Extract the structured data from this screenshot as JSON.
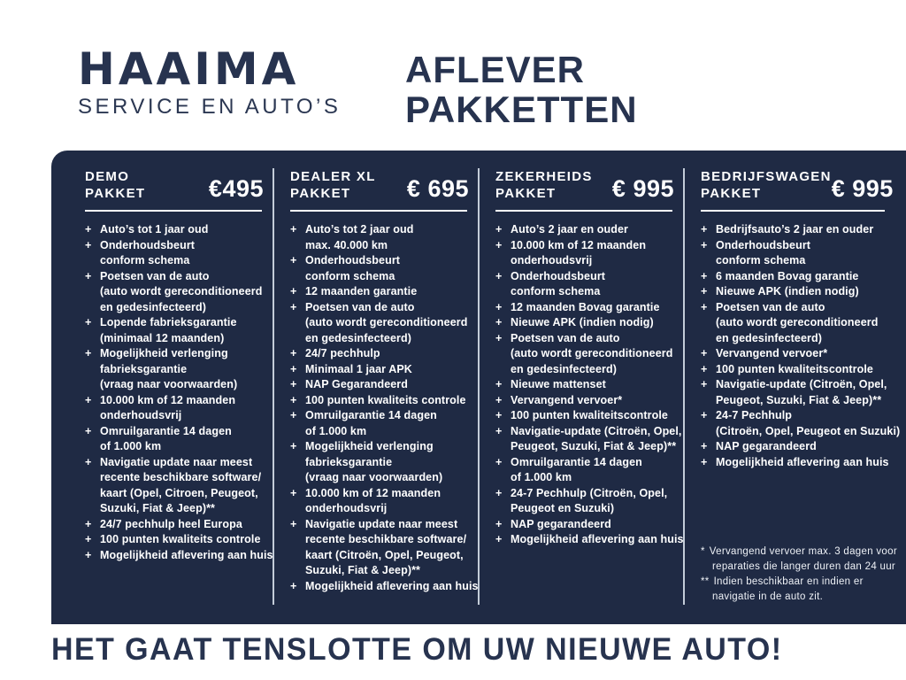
{
  "colors": {
    "panel_navy": "#1f2a44",
    "heading_navy": "#27334f",
    "divider_gray": "#c3ccd8",
    "text_white": "#ffffff"
  },
  "bullet": "+",
  "header": {
    "logo_title": "HAAIMA",
    "logo_subtitle": "SERVICE EN AUTO’S",
    "page_title_line1": "AFLEVER",
    "page_title_line2": "PAKKETTEN"
  },
  "packages": [
    {
      "name_line1": "DEMO",
      "name_line2": "PAKKET",
      "price": "€495",
      "items": [
        [
          "Auto’s tot 1 jaar oud"
        ],
        [
          "Onderhoudsbeurt",
          "conform schema"
        ],
        [
          "Poetsen van de auto",
          "(auto wordt gereconditioneerd",
          "en gedesinfecteerd)"
        ],
        [
          "Lopende fabrieksgarantie",
          "(minimaal 12 maanden)"
        ],
        [
          "Mogelijkheid verlenging",
          "fabrieksgarantie",
          "(vraag naar voorwaarden)"
        ],
        [
          "10.000 km of 12 maanden",
          "onderhoudsvrij"
        ],
        [
          "Omruilgarantie 14 dagen",
          "of 1.000 km"
        ],
        [
          "Navigatie update naar meest",
          "recente beschikbare software/",
          "kaart (Opel, Citroen, Peugeot,",
          "Suzuki, Fiat & Jeep)**"
        ],
        [
          "24/7 pechhulp heel Europa"
        ],
        [
          "100 punten kwaliteits controle"
        ],
        [
          "Mogelijkheid aflevering aan huis"
        ]
      ]
    },
    {
      "name_line1": "DEALER XL",
      "name_line2": "PAKKET",
      "price": "€ 695",
      "items": [
        [
          "Auto’s tot 2 jaar oud",
          "max. 40.000 km"
        ],
        [
          "Onderhoudsbeurt",
          "conform schema"
        ],
        [
          "12 maanden garantie"
        ],
        [
          "Poetsen van de auto",
          "(auto wordt gereconditioneerd",
          "en gedesinfecteerd)"
        ],
        [
          "24/7 pechhulp"
        ],
        [
          "Minimaal 1 jaar APK"
        ],
        [
          "NAP Gegarandeerd"
        ],
        [
          "100 punten kwaliteits controle"
        ],
        [
          "Omruilgarantie 14 dagen",
          "of 1.000 km"
        ],
        [
          "Mogelijkheid verlenging",
          "fabrieksgarantie",
          "(vraag naar voorwaarden)"
        ],
        [
          "10.000 km of 12 maanden",
          "onderhoudsvrij"
        ],
        [
          "Navigatie update naar meest",
          "recente beschikbare software/",
          "kaart (Citroën, Opel, Peugeot,",
          "Suzuki, Fiat & Jeep)**"
        ],
        [
          "Mogelijkheid aflevering aan huis"
        ]
      ]
    },
    {
      "name_line1": "ZEKERHEIDS",
      "name_line2": "PAKKET",
      "price": "€ 995",
      "items": [
        [
          "Auto’s 2 jaar en ouder"
        ],
        [
          "10.000 km of 12 maanden",
          "onderhoudsvrij"
        ],
        [
          "Onderhoudsbeurt",
          "conform schema"
        ],
        [
          "12 maanden Bovag garantie"
        ],
        [
          "Nieuwe APK (indien nodig)"
        ],
        [
          "Poetsen van de auto",
          "(auto wordt gereconditioneerd",
          "en gedesinfecteerd)"
        ],
        [
          "Nieuwe mattenset"
        ],
        [
          "Vervangend vervoer*"
        ],
        [
          "100 punten kwaliteitscontrole"
        ],
        [
          "Navigatie-update (Citroën, Opel,",
          "Peugeot, Suzuki, Fiat & Jeep)**"
        ],
        [
          "Omruilgarantie 14 dagen",
          "of 1.000 km"
        ],
        [
          "24-7 Pechhulp (Citroën, Opel,",
          "Peugeot en Suzuki)"
        ],
        [
          "NAP gegarandeerd"
        ],
        [
          "Mogelijkheid aflevering aan huis"
        ]
      ]
    },
    {
      "name_line1": "BEDRIJFSWAGEN",
      "name_line2": "PAKKET",
      "price": "€ 995",
      "items": [
        [
          "Bedrijfsauto’s 2 jaar en ouder"
        ],
        [
          "Onderhoudsbeurt",
          "conform schema"
        ],
        [
          "6 maanden Bovag garantie"
        ],
        [
          "Nieuwe APK (indien nodig)"
        ],
        [
          "Poetsen van de auto",
          "(auto wordt gereconditioneerd",
          "en gedesinfecteerd)"
        ],
        [
          "Vervangend vervoer*"
        ],
        [
          "100 punten kwaliteitscontrole"
        ],
        [
          "Navigatie-update (Citroën, Opel,",
          "Peugeot, Suzuki, Fiat & Jeep)**"
        ],
        [
          "24-7 Pechhulp",
          "(Citroën, Opel, Peugeot en Suzuki)"
        ],
        [
          "NAP gegarandeerd"
        ],
        [
          "Mogelijkheid aflevering aan huis"
        ]
      ]
    }
  ],
  "footnotes": [
    {
      "marker": "*",
      "lines": [
        "Vervangend vervoer max. 3 dagen voor",
        "reparaties die langer duren dan 24 uur"
      ]
    },
    {
      "marker": "**",
      "lines": [
        "Indien beschikbaar en indien er",
        "navigatie in de auto zit."
      ]
    }
  ],
  "footer": {
    "text": "HET GAAT TENSLOTTE OM UW NIEUWE AUTO!"
  }
}
